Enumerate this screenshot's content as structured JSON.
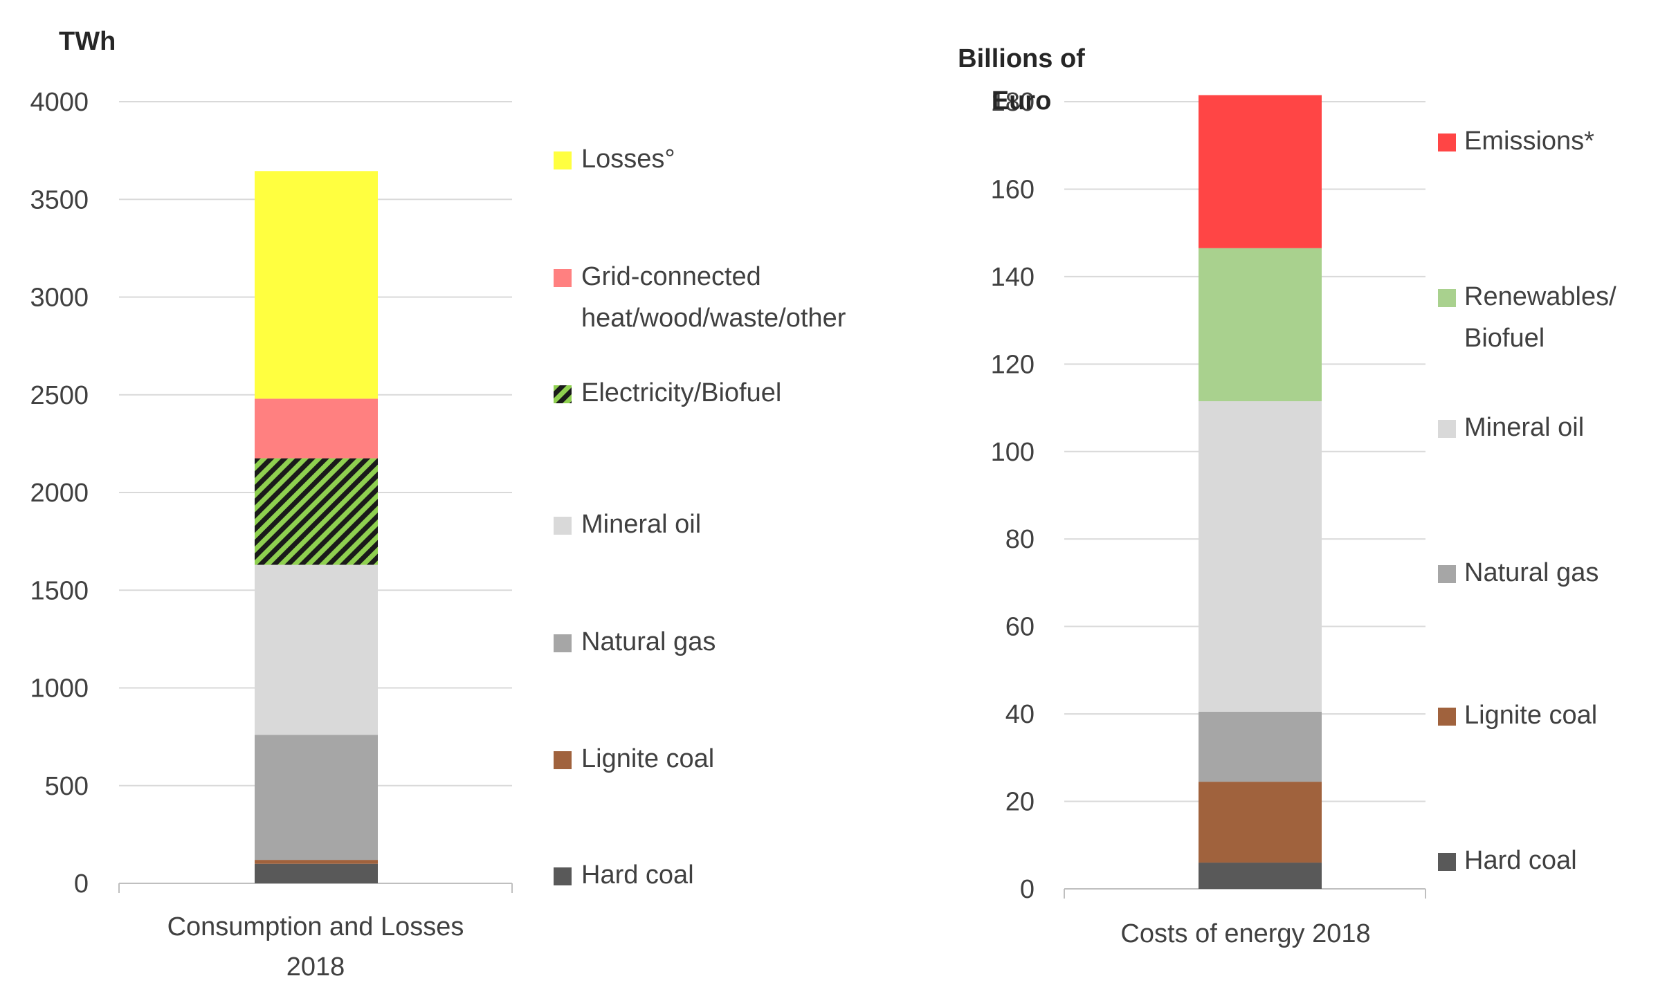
{
  "chart_data": [
    {
      "type": "bar",
      "stacked": true,
      "unit_label": "TWh",
      "categories": [
        "Consumption and Losses 2018"
      ],
      "category_lines": [
        "Consumption and Losses",
        "2018"
      ],
      "ylim": [
        0,
        4000
      ],
      "yticks": [
        0,
        500,
        1000,
        1500,
        2000,
        2500,
        3000,
        3500,
        4000
      ],
      "grid": true,
      "legend_position": "right",
      "series": [
        {
          "name": "Hard coal",
          "lines": [
            "Hard coal"
          ],
          "values": [
            100
          ],
          "color": "#595959"
        },
        {
          "name": "Lignite coal",
          "lines": [
            "Lignite coal"
          ],
          "values": [
            20
          ],
          "color": "#a0623d"
        },
        {
          "name": "Natural gas",
          "lines": [
            "Natural gas"
          ],
          "values": [
            640
          ],
          "color": "#a6a6a6"
        },
        {
          "name": "Mineral oil",
          "lines": [
            "Mineral oil"
          ],
          "values": [
            870
          ],
          "color": "#d9d9d9"
        },
        {
          "name": "Electricity/Biofuel",
          "lines": [
            "Electricity/Biofuel"
          ],
          "values": [
            545
          ],
          "color": "#8fd050",
          "pattern": "hatched"
        },
        {
          "name": "Grid-connected heat/wood/waste/other",
          "lines": [
            "Grid-connected",
            "heat/wood/waste/other"
          ],
          "values": [
            305
          ],
          "color": "#ff8080"
        },
        {
          "name": "Losses°",
          "lines": [
            "Losses°"
          ],
          "values": [
            1165
          ],
          "color": "#ffff40"
        }
      ]
    },
    {
      "type": "bar",
      "stacked": true,
      "unit_label": [
        "Billions of",
        "Euro"
      ],
      "categories": [
        "Costs of energy 2018"
      ],
      "category_lines": [
        "Costs of energy 2018"
      ],
      "ylim": [
        0,
        190
      ],
      "yticks": [
        0,
        20,
        40,
        60,
        80,
        100,
        120,
        140,
        160,
        180
      ],
      "grid": true,
      "legend_position": "right",
      "series": [
        {
          "name": "Hard coal",
          "lines": [
            "Hard coal"
          ],
          "values": [
            6
          ],
          "color": "#595959"
        },
        {
          "name": "Lignite coal",
          "lines": [
            "Lignite coal"
          ],
          "values": [
            18.5
          ],
          "color": "#a0623d"
        },
        {
          "name": "Natural gas",
          "lines": [
            "Natural gas"
          ],
          "values": [
            16
          ],
          "color": "#a6a6a6"
        },
        {
          "name": "Mineral oil",
          "lines": [
            "Mineral oil"
          ],
          "values": [
            71
          ],
          "color": "#d9d9d9"
        },
        {
          "name": "Renewables/ Biofuel",
          "lines": [
            "Renewables/",
            "Biofuel"
          ],
          "values": [
            35
          ],
          "color": "#a9d18e"
        },
        {
          "name": "Emissions*",
          "lines": [
            "Emissions*"
          ],
          "values": [
            35
          ],
          "color": "#ff4545"
        }
      ]
    }
  ]
}
